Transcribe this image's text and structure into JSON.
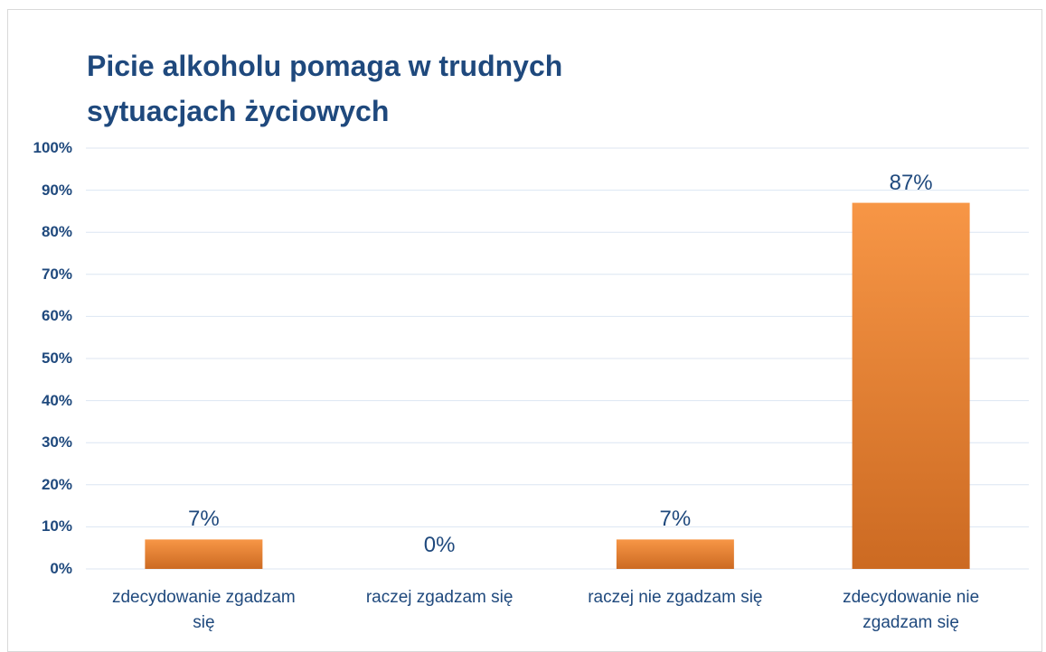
{
  "chart_data": {
    "type": "bar",
    "title": "Picie alkoholu pomaga w trudnych sytuacjach życiowych",
    "categories": [
      "zdecydowanie zgadzam się",
      "raczej zgadzam się",
      "raczej nie zgadzam się",
      "zdecydowanie nie zgadzam się"
    ],
    "values": [
      7,
      0,
      7,
      87
    ],
    "value_labels": [
      "7%",
      "0%",
      "7%",
      "87%"
    ],
    "color": "#f79646",
    "ylim": [
      0,
      100
    ],
    "yticks": [
      {
        "value": 0,
        "label": "0%"
      },
      {
        "value": 10,
        "label": "10%"
      },
      {
        "value": 20,
        "label": "20%"
      },
      {
        "value": 30,
        "label": "30%"
      },
      {
        "value": 40,
        "label": "40%"
      },
      {
        "value": 50,
        "label": "50%"
      },
      {
        "value": 60,
        "label": "60%"
      },
      {
        "value": 70,
        "label": "70%"
      },
      {
        "value": 80,
        "label": "80%"
      },
      {
        "value": 90,
        "label": "90%"
      },
      {
        "value": 100,
        "label": "100%"
      }
    ],
    "grid": true
  }
}
